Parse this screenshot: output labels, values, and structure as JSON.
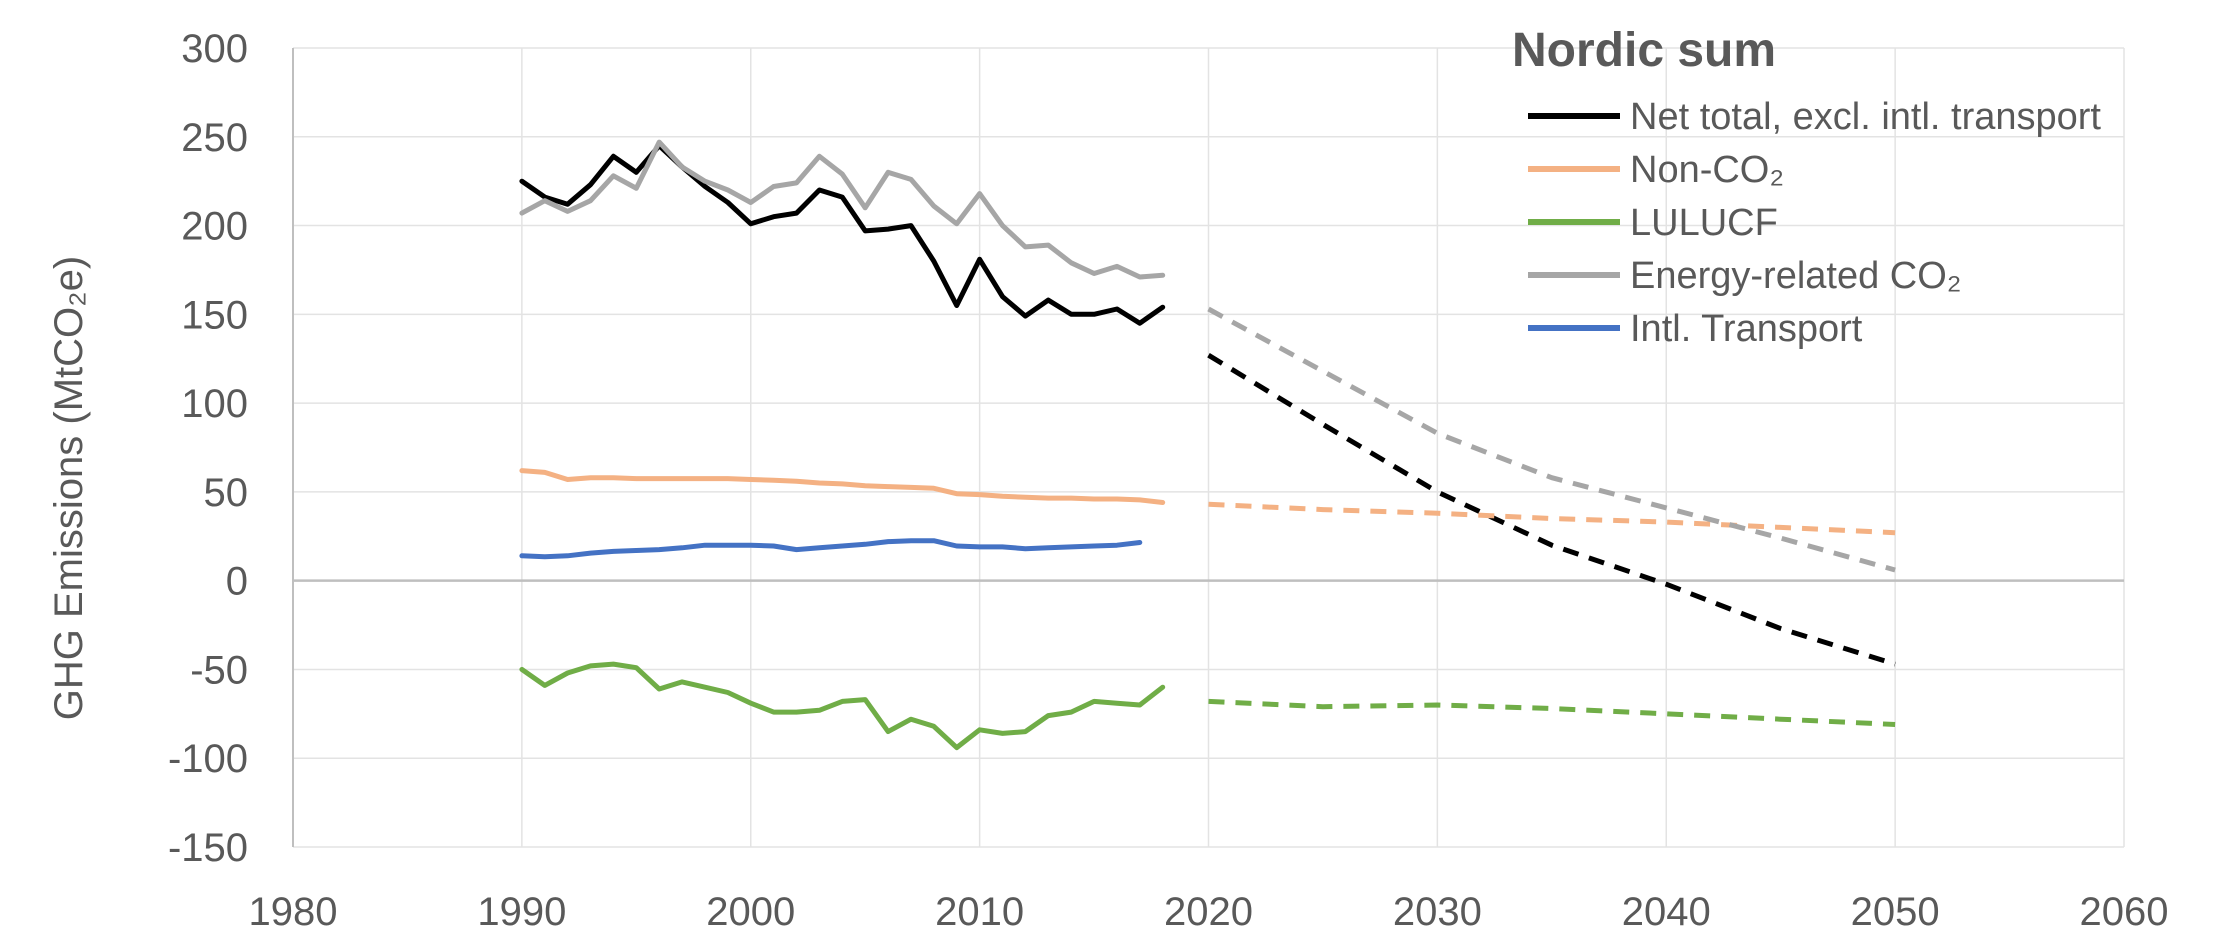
{
  "chart_data": {
    "type": "line",
    "title": "",
    "xlabel": "",
    "ylabel": "GHG Emissions (MtCO₂e)",
    "xlim": [
      1980,
      2060
    ],
    "ylim": [
      -150,
      300
    ],
    "x_ticks": [
      "1980",
      "1990",
      "2000",
      "2010",
      "2020",
      "2030",
      "2040",
      "2050",
      "2060"
    ],
    "y_ticks": [
      "300",
      "250",
      "200",
      "150",
      "100",
      "50",
      "0",
      "-50",
      "-100",
      "-150"
    ],
    "grid": true,
    "legend": {
      "title": "Nordic sum",
      "placement": "top-right",
      "entries": [
        "Net total, excl. intl. transport",
        "Non-CO₂",
        "LULUCF",
        "Energy-related CO₂",
        "Intl. Transport"
      ]
    },
    "series": [
      {
        "name": "Net total, excl. intl. transport",
        "color": "#000000",
        "historical": {
          "x": [
            1990,
            1991,
            1992,
            1993,
            1994,
            1995,
            1996,
            1997,
            1998,
            1999,
            2000,
            2001,
            2002,
            2003,
            2004,
            2005,
            2006,
            2007,
            2008,
            2009,
            2010,
            2011,
            2012,
            2013,
            2014,
            2015,
            2016,
            2017,
            2018
          ],
          "y": [
            225,
            216,
            212,
            223,
            239,
            230,
            245,
            233,
            222,
            213,
            201,
            205,
            207,
            220,
            216,
            197,
            198,
            200,
            180,
            155,
            181,
            160,
            149,
            158,
            150,
            150,
            153,
            145,
            154
          ]
        },
        "projection": {
          "x": [
            2020,
            2025,
            2030,
            2035,
            2040,
            2045,
            2050
          ],
          "y": [
            127,
            88,
            50,
            20,
            -2,
            -27,
            -47
          ]
        }
      },
      {
        "name": "Non-CO₂",
        "color": "#F4B183",
        "historical": {
          "x": [
            1990,
            1991,
            1992,
            1993,
            1994,
            1995,
            1996,
            1997,
            1998,
            1999,
            2000,
            2001,
            2002,
            2003,
            2004,
            2005,
            2006,
            2007,
            2008,
            2009,
            2010,
            2011,
            2012,
            2013,
            2014,
            2015,
            2016,
            2017,
            2018
          ],
          "y": [
            62,
            61,
            57,
            58,
            58,
            57.5,
            57.5,
            57.5,
            57.5,
            57.5,
            57,
            56.5,
            56,
            55,
            54.5,
            53.5,
            53,
            52.5,
            52,
            49,
            48.5,
            47.5,
            47,
            46.5,
            46.5,
            46,
            46,
            45.5,
            44
          ]
        },
        "projection": {
          "x": [
            2020,
            2025,
            2030,
            2035,
            2040,
            2045,
            2050
          ],
          "y": [
            43,
            40,
            38,
            35,
            33,
            30,
            27
          ]
        }
      },
      {
        "name": "LULUCF",
        "color": "#70AD47",
        "historical": {
          "x": [
            1990,
            1991,
            1992,
            1993,
            1994,
            1995,
            1996,
            1997,
            1998,
            1999,
            2000,
            2001,
            2002,
            2003,
            2004,
            2005,
            2006,
            2007,
            2008,
            2009,
            2010,
            2011,
            2012,
            2013,
            2014,
            2015,
            2016,
            2017,
            2018
          ],
          "y": [
            -50,
            -59,
            -52,
            -48,
            -47,
            -49,
            -61,
            -57,
            -60,
            -63,
            -69,
            -74,
            -74,
            -73,
            -68,
            -67,
            -85,
            -78,
            -82,
            -94,
            -84,
            -86,
            -85,
            -76,
            -74,
            -68,
            -69,
            -70,
            -60
          ]
        },
        "projection": {
          "x": [
            2020,
            2025,
            2030,
            2035,
            2040,
            2045,
            2050
          ],
          "y": [
            -68,
            -71,
            -70,
            -72,
            -75,
            -78,
            -81
          ]
        }
      },
      {
        "name": "Energy-related CO₂",
        "color": "#A6A6A6",
        "historical": {
          "x": [
            1990,
            1991,
            1992,
            1993,
            1994,
            1995,
            1996,
            1997,
            1998,
            1999,
            2000,
            2001,
            2002,
            2003,
            2004,
            2005,
            2006,
            2007,
            2008,
            2009,
            2010,
            2011,
            2012,
            2013,
            2014,
            2015,
            2016,
            2017,
            2018
          ],
          "y": [
            207,
            214,
            208,
            214,
            228,
            221,
            247,
            233,
            225,
            220,
            213,
            222,
            224,
            239,
            229,
            210,
            230,
            226,
            211,
            201,
            218,
            200,
            188,
            189,
            179,
            173,
            177,
            171,
            172
          ]
        },
        "projection": {
          "x": [
            2020,
            2025,
            2030,
            2035,
            2040,
            2045,
            2050
          ],
          "y": [
            153,
            118,
            83,
            58,
            41,
            24,
            6
          ]
        }
      },
      {
        "name": "Intl. Transport",
        "color": "#4472C4",
        "historical": {
          "x": [
            1990,
            1991,
            1992,
            1993,
            1994,
            1995,
            1996,
            1997,
            1998,
            1999,
            2000,
            2001,
            2002,
            2003,
            2004,
            2005,
            2006,
            2007,
            2008,
            2009,
            2010,
            2011,
            2012,
            2013,
            2014,
            2015,
            2016,
            2017
          ],
          "y": [
            14,
            13.5,
            14,
            15.5,
            16.5,
            17,
            17.5,
            18.5,
            20,
            20,
            20,
            19.5,
            17.5,
            18.5,
            19.5,
            20.5,
            22,
            22.5,
            22.5,
            19.5,
            19,
            19,
            18,
            18.5,
            19,
            19.5,
            20,
            21.5
          ]
        }
      }
    ]
  }
}
